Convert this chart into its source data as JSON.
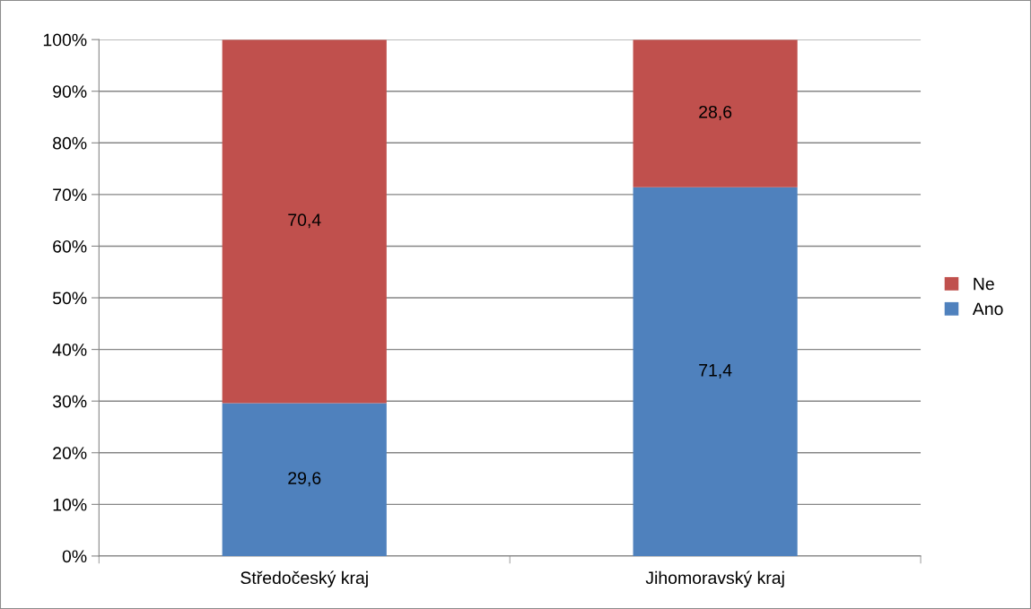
{
  "chart_data": {
    "type": "bar",
    "stacked": true,
    "categories": [
      "Středočeský kraj",
      "Jihomoravský kraj"
    ],
    "series": [
      {
        "name": "Ano",
        "color": "#4f81bd",
        "values": [
          29.6,
          71.4
        ],
        "value_labels": [
          "29,6",
          "71,4"
        ]
      },
      {
        "name": "Ne",
        "color": "#c0504d",
        "values": [
          70.4,
          28.6
        ],
        "value_labels": [
          "70,4",
          "28,6"
        ]
      }
    ],
    "ylim": [
      0,
      100
    ],
    "yticks": [
      {
        "value": 0,
        "label": "0%"
      },
      {
        "value": 10,
        "label": "10%"
      },
      {
        "value": 20,
        "label": "20%"
      },
      {
        "value": 30,
        "label": "30%"
      },
      {
        "value": 40,
        "label": "40%"
      },
      {
        "value": 50,
        "label": "50%"
      },
      {
        "value": 60,
        "label": "60%"
      },
      {
        "value": 70,
        "label": "70%"
      },
      {
        "value": 80,
        "label": "80%"
      },
      {
        "value": 90,
        "label": "90%"
      },
      {
        "value": 100,
        "label": "100%"
      }
    ],
    "grid": "y",
    "legend": "right"
  }
}
